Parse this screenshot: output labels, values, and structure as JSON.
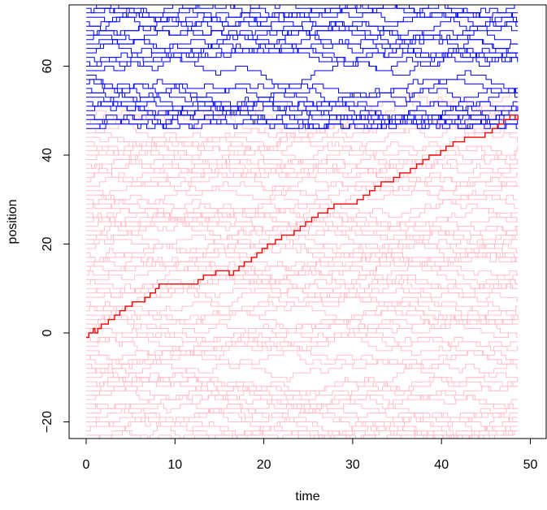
{
  "chart_data": {
    "type": "line",
    "title": "",
    "xlabel": "time",
    "ylabel": "position",
    "xlim": [
      0,
      50
    ],
    "ylim": [
      -24,
      74
    ],
    "x_ticks": [
      "0",
      "10",
      "20",
      "30",
      "40",
      "50"
    ],
    "y_ticks": [
      "-20",
      "0",
      "20",
      "40",
      "60"
    ],
    "grid": false,
    "legend": "none",
    "colors": {
      "highlight": "#ff0000",
      "above": "#0000ff",
      "below": "#ffc0cb",
      "axis": "#000000"
    },
    "highlight_series": {
      "x": [
        0,
        0.3,
        0.8,
        1.0,
        1.3,
        1.7,
        2.5,
        3.2,
        3.8,
        4.4,
        5.2,
        6.6,
        7.2,
        7.8,
        8.2,
        12.6,
        13.2,
        14.6,
        16.1,
        16.6,
        17.2,
        17.8,
        18.6,
        19.2,
        19.8,
        20.4,
        21.3,
        22.0,
        23.4,
        24.1,
        24.7,
        25.4,
        26.1,
        27.2,
        27.9,
        30.5,
        31.2,
        31.9,
        32.5,
        33.2,
        34.6,
        35.3,
        36.5,
        37.2,
        37.9,
        38.6,
        39.9,
        40.5,
        41.3,
        42.6,
        44.9,
        45.7,
        46.3,
        47.0,
        47.7,
        48.3,
        48.6
      ],
      "y": [
        -1,
        0,
        1,
        0,
        1,
        2,
        3,
        4,
        5,
        6,
        7,
        8,
        9,
        10,
        11,
        12,
        13,
        14,
        13,
        14,
        15,
        16,
        17,
        18,
        19,
        20,
        21,
        22,
        23,
        24,
        25,
        26,
        27,
        28,
        29,
        30,
        31,
        32,
        33,
        34,
        35,
        36,
        37,
        38,
        39,
        40,
        41,
        42,
        43,
        44,
        45,
        46,
        47,
        48,
        49,
        48,
        49
      ]
    },
    "above_band": {
      "min_position": 46,
      "max_position": 74
    },
    "below_band": {
      "min_position": -24,
      "max_position": 54
    },
    "time_range": [
      0,
      48.6
    ]
  }
}
